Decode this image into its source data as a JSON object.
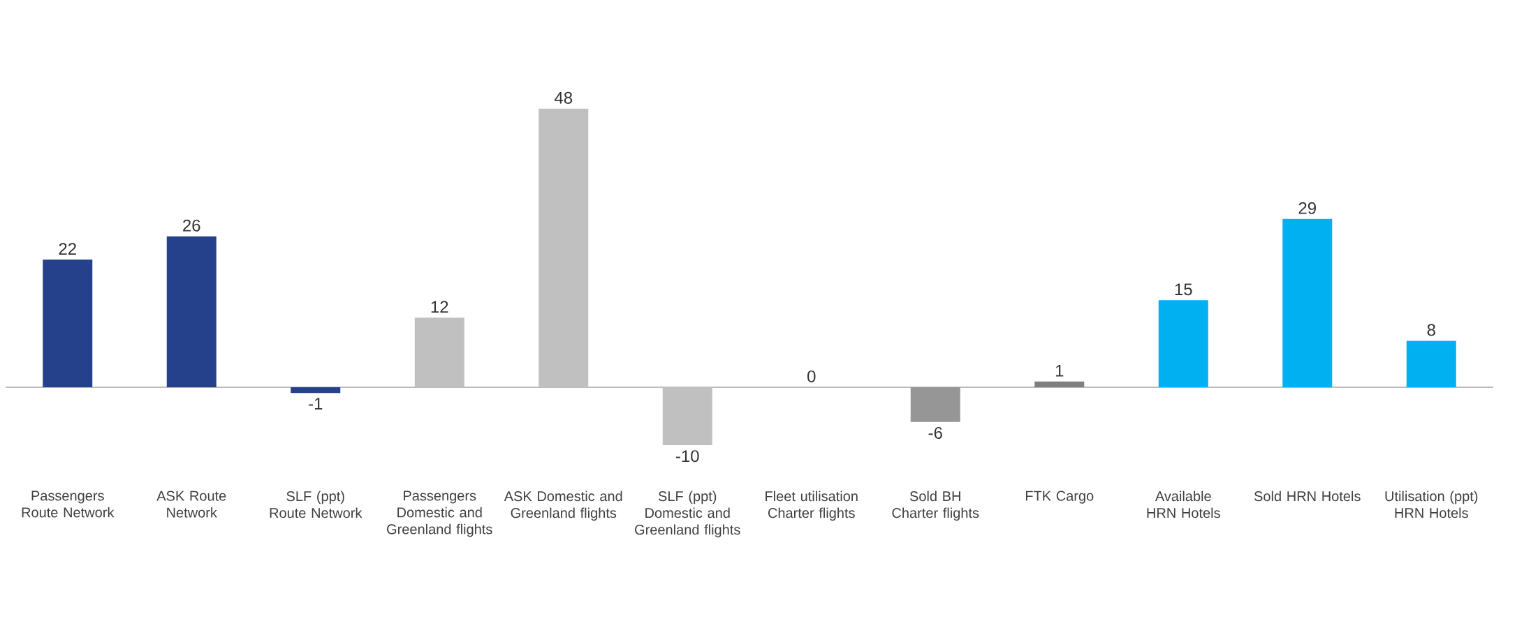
{
  "chart_data": {
    "type": "bar",
    "categories": [
      "Passengers Route Network",
      "ASK Route Network",
      "SLF (ppt) Route Network",
      "Passengers Domestic and Greenland flights",
      "ASK Domestic and Greenland flights",
      "SLF (ppt) Domestic and Greenland flights",
      "Fleet utilisation Charter flights",
      "Sold BH Charter flights",
      "FTK Cargo",
      "Available HRN Hotels",
      "Sold HRN Hotels",
      "Utilisation (ppt) HRN Hotels"
    ],
    "values": [
      22,
      26,
      -1,
      12,
      48,
      -10,
      0,
      -6,
      1,
      15,
      29,
      8
    ],
    "colors": [
      "#26418b",
      "#26418b",
      "#26418b",
      "#c0c0c0",
      "#c0c0c0",
      "#c0c0c0",
      "#969696",
      "#969696",
      "#7f7f7f",
      "#00b0f0",
      "#00b0f0",
      "#00b0f0"
    ],
    "data_labels": true
  }
}
